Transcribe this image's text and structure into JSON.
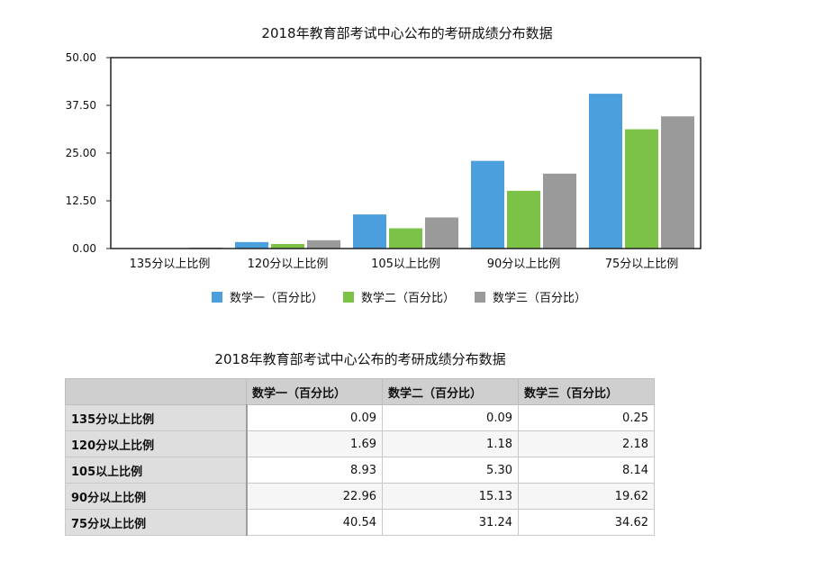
{
  "chart_data": {
    "type": "bar",
    "title": "2018年教育部考试中心公布的考研成绩分布数据",
    "categories": [
      "135分以上比例",
      "120分以上比例",
      "105以上比例",
      "90分以上比例",
      "75分以上比例"
    ],
    "series": [
      {
        "name": "数学一（百分比）",
        "color": "#4a9fdc",
        "values": [
          0.09,
          1.69,
          8.93,
          22.96,
          40.54
        ]
      },
      {
        "name": "数学二（百分比）",
        "color": "#7bc246",
        "values": [
          0.09,
          1.18,
          5.3,
          15.13,
          31.24
        ]
      },
      {
        "name": "数学三（百分比）",
        "color": "#9b9a9b",
        "values": [
          0.25,
          2.18,
          8.14,
          19.62,
          34.62
        ]
      }
    ],
    "ylim": [
      0,
      50
    ],
    "yticks": [
      "0.00",
      "12.50",
      "25.00",
      "37.50",
      "50.00"
    ],
    "xlabel": "",
    "ylabel": "",
    "legend": "bottom",
    "grid": false
  },
  "table": {
    "title": "2018年教育部考试中心公布的考研成绩分布数据",
    "corner": "",
    "columns": [
      "数学一（百分比）",
      "数学二（百分比）",
      "数学三（百分比）"
    ],
    "rows": [
      {
        "label": "135分以上比例",
        "values": [
          "0.09",
          "0.09",
          "0.25"
        ]
      },
      {
        "label": "120分以上比例",
        "values": [
          "1.69",
          "1.18",
          "2.18"
        ]
      },
      {
        "label": "105以上比例",
        "values": [
          "8.93",
          "5.30",
          "8.14"
        ]
      },
      {
        "label": "90分以上比例",
        "values": [
          "22.96",
          "15.13",
          "19.62"
        ]
      },
      {
        "label": "75分以上比例",
        "values": [
          "40.54",
          "31.24",
          "34.62"
        ]
      }
    ]
  }
}
